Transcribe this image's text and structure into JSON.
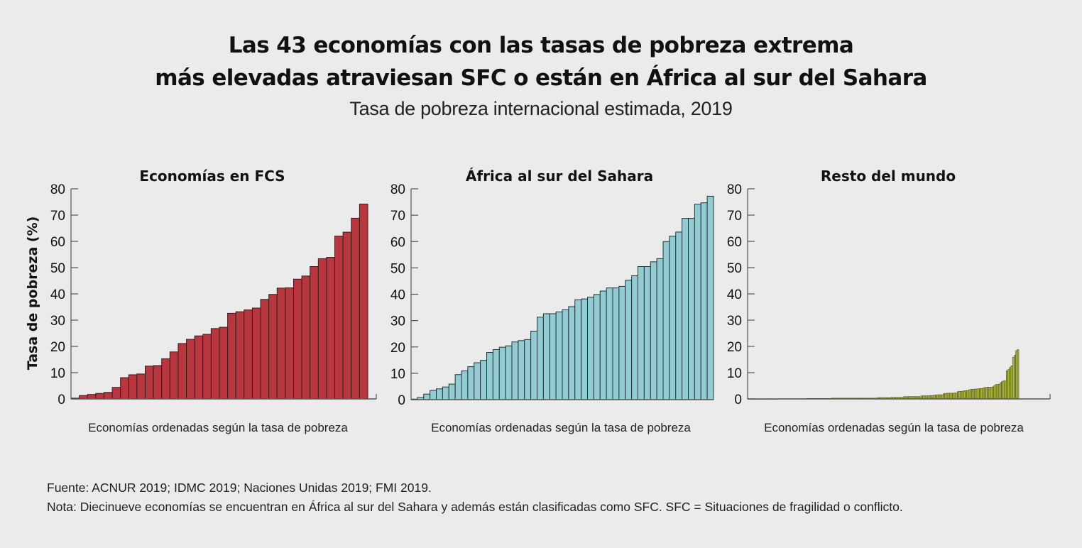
{
  "header": {
    "title_line1": "Las 43 economías con las tasas de pobreza extrema",
    "title_line2": "más elevadas atraviesan SFC o están en África al sur del Sahara",
    "subtitle": "Tasa de pobreza internacional estimada, 2019"
  },
  "footer": {
    "source": "Fuente: ACNUR 2019; IDMC 2019; Naciones Unidas 2019; FMI 2019.",
    "note": "Nota: Diecinueve economías se encuentran en África al sur del Sahara y además están clasificadas como SFC. SFC = Situaciones de fragilidad o conflicto."
  },
  "chart_data": [
    {
      "type": "bar",
      "title": "Economías en FCS",
      "xlabel": "Economías ordenadas según la tasa de pobreza",
      "ylabel": "Tasa de pobreza  (%)",
      "ylim": [
        0,
        80
      ],
      "yticks": [
        "0",
        "10",
        "20",
        "30",
        "40",
        "50",
        "60",
        "70",
        "80"
      ],
      "grid": false,
      "color": "#b8373f",
      "values": [
        0.3,
        1.3,
        1.7,
        2.1,
        2.5,
        4.4,
        8.1,
        9.2,
        9.5,
        12.5,
        12.7,
        15.3,
        17.9,
        21.1,
        22.7,
        24.0,
        24.6,
        26.8,
        27.3,
        32.6,
        33.2,
        33.9,
        34.6,
        37.9,
        39.8,
        42.2,
        42.3,
        45.6,
        46.8,
        50.4,
        53.4,
        53.9,
        62.0,
        63.5,
        68.8,
        74.2
      ]
    },
    {
      "type": "bar",
      "title": "África al sur del Sahara",
      "xlabel": "Economías ordenadas según la tasa de pobreza",
      "ylabel": "",
      "ylim": [
        0,
        80
      ],
      "yticks": [
        "0",
        "10",
        "20",
        "30",
        "40",
        "50",
        "60",
        "70",
        "80"
      ],
      "grid": false,
      "color": "#93cbd3",
      "values": [
        0.2,
        0.8,
        2.1,
        3.5,
        4.1,
        4.8,
        5.9,
        9.5,
        10.9,
        12.5,
        14.0,
        14.9,
        17.9,
        19.0,
        19.9,
        20.4,
        21.9,
        22.4,
        22.8,
        26.0,
        31.3,
        32.6,
        32.6,
        33.3,
        34.1,
        35.3,
        37.9,
        38.2,
        38.9,
        39.9,
        41.2,
        42.4,
        42.4,
        43.0,
        45.3,
        47.0,
        50.5,
        50.5,
        52.3,
        53.5,
        60.0,
        62.0,
        63.6,
        68.8,
        68.8,
        74.2,
        74.7,
        77.2
      ]
    },
    {
      "type": "bar",
      "title": "Resto del mundo",
      "xlabel": "Economías ordenadas según la tasa de pobreza",
      "ylabel": "",
      "ylim": [
        0,
        80
      ],
      "yticks": [
        "0",
        "10",
        "20",
        "30",
        "40",
        "50",
        "60",
        "70",
        "80"
      ],
      "grid": false,
      "color": "#a9b43e",
      "values": [
        0.0,
        0.0,
        0.0,
        0.0,
        0.0,
        0.0,
        0.0,
        0.0,
        0.0,
        0.0,
        0.0,
        0.0,
        0.0,
        0.0,
        0.0,
        0.0,
        0.0,
        0.0,
        0.0,
        0.0,
        0.1,
        0.1,
        0.1,
        0.1,
        0.1,
        0.1,
        0.1,
        0.1,
        0.1,
        0.1,
        0.1,
        0.1,
        0.1,
        0.1,
        0.1,
        0.1,
        0.1,
        0.2,
        0.2,
        0.2,
        0.2,
        0.2,
        0.2,
        0.2,
        0.2,
        0.2,
        0.2,
        0.2,
        0.2,
        0.2,
        0.2,
        0.2,
        0.2,
        0.3,
        0.3,
        0.3,
        0.3,
        0.3,
        0.3,
        0.3,
        0.3,
        0.3,
        0.3,
        0.3,
        0.3,
        0.3,
        0.3,
        0.3,
        0.3,
        0.3,
        0.3,
        0.3,
        0.3,
        0.3,
        0.3,
        0.3,
        0.3,
        0.3,
        0.3,
        0.3,
        0.3,
        0.3,
        0.5,
        0.5,
        0.5,
        0.5,
        0.5,
        0.5,
        0.5,
        0.5,
        0.5,
        0.6,
        0.6,
        0.6,
        0.6,
        0.6,
        0.6,
        0.6,
        0.6,
        0.9,
        0.9,
        0.9,
        0.9,
        0.9,
        0.9,
        0.9,
        0.9,
        0.9,
        0.9,
        0.9,
        1.2,
        1.2,
        1.2,
        1.2,
        1.2,
        1.3,
        1.3,
        1.3,
        1.5,
        1.5,
        1.6,
        1.6,
        1.6,
        1.6,
        2.0,
        2.1,
        2.2,
        2.2,
        2.2,
        2.2,
        2.2,
        2.3,
        2.3,
        2.8,
        2.9,
        2.9,
        3.0,
        3.1,
        3.2,
        3.2,
        3.5,
        3.6,
        3.7,
        3.7,
        3.8,
        3.8,
        3.9,
        4.0,
        4.0,
        4.1,
        4.4,
        4.4,
        4.5,
        4.5,
        4.5,
        4.6,
        5.0,
        5.5,
        5.5,
        5.6,
        6.2,
        6.6,
        6.9,
        7.0,
        10.7,
        11.2,
        12.0,
        12.6,
        15.9,
        16.6,
        18.4,
        18.8
      ]
    }
  ]
}
